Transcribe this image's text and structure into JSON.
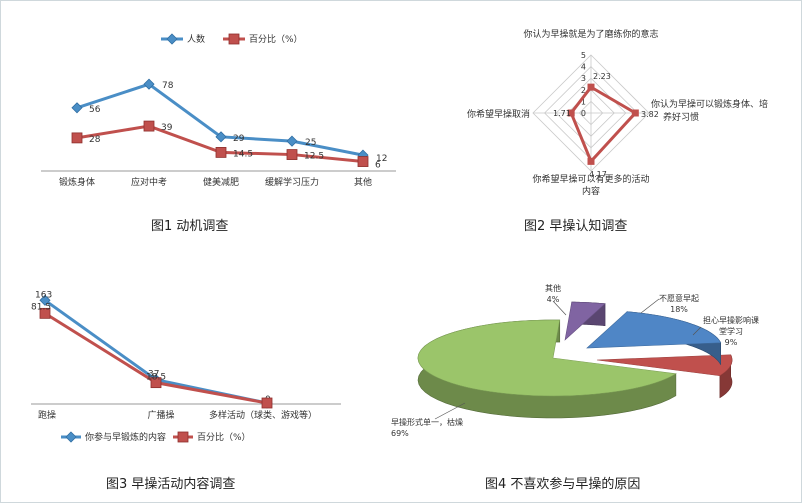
{
  "chart_data": [
    {
      "type": "line",
      "caption": "图1   动机调查",
      "categories": [
        "锻炼身体",
        "应对中考",
        "健美减肥",
        "缓解学习压力",
        "其他"
      ],
      "series": [
        {
          "name": "人数",
          "values": [
            56,
            78,
            29,
            25,
            12
          ],
          "color": "#4a8ec6",
          "marker": "diamond"
        },
        {
          "name": "百分比（%）",
          "values": [
            28,
            39,
            14.5,
            12.5,
            6
          ],
          "color": "#c0504d",
          "marker": "square"
        }
      ],
      "legend": "top"
    },
    {
      "type": "radar",
      "caption": "图2   早操认知调查",
      "axes": [
        "你认为早操就是为了磨练你的意志",
        "你认为早操可以锻炼身体、培养好习惯",
        "你希望早操可以有更多的活动内容",
        "你希望早操取消"
      ],
      "ticks": [
        "5",
        "4",
        "3",
        "2",
        "1",
        "0"
      ],
      "values": [
        2.23,
        3.82,
        4.17,
        1.71
      ],
      "value_labels": [
        "2.23",
        "3.82",
        "4.17",
        "1.71"
      ],
      "range": [
        0,
        5
      ],
      "color": "#c0504d"
    },
    {
      "type": "line",
      "caption": "图3   早操活动内容调查",
      "categories": [
        "跑操",
        "广播操",
        "多样活动（球类、游戏等）"
      ],
      "series": [
        {
          "name": "你参与早锻炼的内容",
          "values": [
            163,
            37,
            0
          ],
          "color": "#4a8ec6",
          "marker": "diamond"
        },
        {
          "name": "百分比（%）",
          "values": [
            81.5,
            18.5,
            0
          ],
          "color": "#c0504d",
          "marker": "square"
        }
      ],
      "value_labels": [
        [
          "163",
          "37",
          "0"
        ],
        [
          "81.5",
          "18.5",
          ""
        ]
      ],
      "legend": "bottom"
    },
    {
      "type": "pie",
      "caption": "图4   不喜欢参与早操的原因",
      "slices": [
        {
          "label": "早操形式单一，枯燥",
          "pct": "69%",
          "value": 69,
          "color": "#9bc56a"
        },
        {
          "label": "不愿意早起",
          "pct": "18%",
          "value": 18,
          "color": "#4f86c6"
        },
        {
          "label": "担心早操影响课堂学习",
          "pct": "9%",
          "value": 9,
          "color": "#c0504d"
        },
        {
          "label": "其他",
          "pct": "4%",
          "value": 4,
          "color": "#8064a2"
        }
      ]
    }
  ]
}
